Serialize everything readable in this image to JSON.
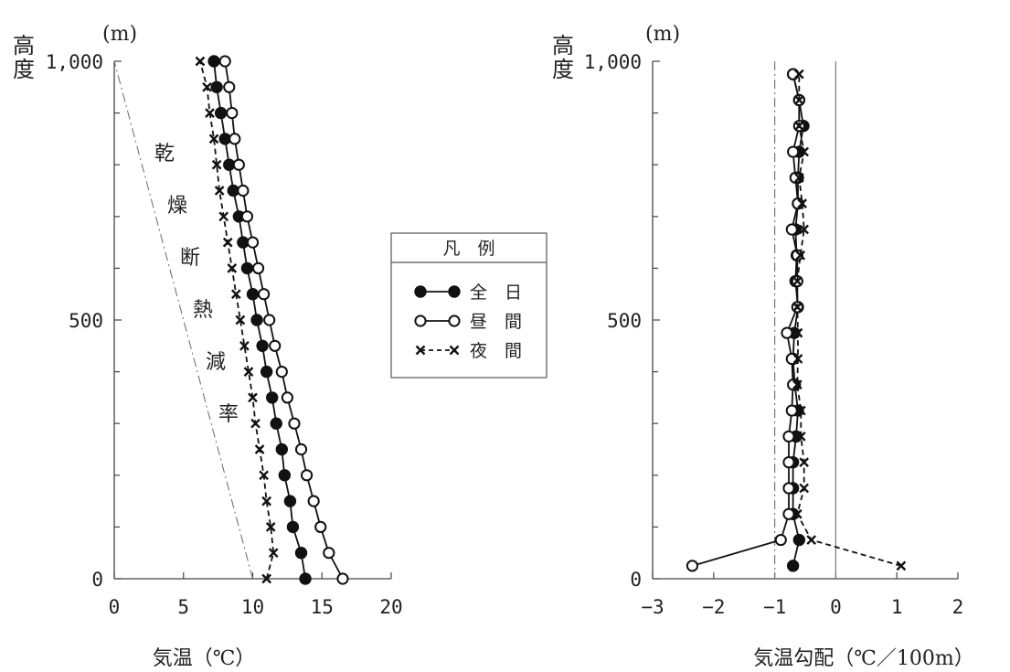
{
  "chart_data": [
    {
      "type": "line",
      "unit_label": "(m)",
      "ylabel": "高度",
      "xlabel": "気温（℃）",
      "xlim": [
        0,
        20
      ],
      "ylim": [
        0,
        1000
      ],
      "x_ticks": [
        "0",
        "5",
        "10",
        "15",
        "20"
      ],
      "y_ticks": [
        "0",
        "500",
        "1,000"
      ],
      "grid": false,
      "annotation": "乾燥断熱減率",
      "reference_line": {
        "x": [
          10,
          0
        ],
        "y": [
          0,
          1000
        ]
      },
      "series": [
        {
          "name": "全日",
          "marker": "filled-circle",
          "line": "solid",
          "points": [
            [
              13.8,
              0
            ],
            [
              13.5,
              50
            ],
            [
              12.9,
              100
            ],
            [
              12.7,
              150
            ],
            [
              12.3,
              200
            ],
            [
              12.1,
              250
            ],
            [
              11.7,
              300
            ],
            [
              11.4,
              350
            ],
            [
              11.0,
              400
            ],
            [
              10.7,
              450
            ],
            [
              10.3,
              500
            ],
            [
              10.0,
              550
            ],
            [
              9.6,
              600
            ],
            [
              9.3,
              650
            ],
            [
              9.0,
              700
            ],
            [
              8.6,
              750
            ],
            [
              8.3,
              800
            ],
            [
              8.0,
              850
            ],
            [
              7.7,
              900
            ],
            [
              7.4,
              950
            ],
            [
              7.2,
              1000
            ]
          ]
        },
        {
          "name": "昼間",
          "marker": "open-circle",
          "line": "solid",
          "points": [
            [
              16.5,
              0
            ],
            [
              15.5,
              50
            ],
            [
              14.9,
              100
            ],
            [
              14.4,
              150
            ],
            [
              13.9,
              200
            ],
            [
              13.5,
              250
            ],
            [
              13.0,
              300
            ],
            [
              12.5,
              350
            ],
            [
              12.1,
              400
            ],
            [
              11.6,
              450
            ],
            [
              11.2,
              500
            ],
            [
              10.8,
              550
            ],
            [
              10.4,
              600
            ],
            [
              10.0,
              650
            ],
            [
              9.6,
              700
            ],
            [
              9.3,
              750
            ],
            [
              9.0,
              800
            ],
            [
              8.7,
              850
            ],
            [
              8.5,
              900
            ],
            [
              8.3,
              950
            ],
            [
              8.0,
              1000
            ]
          ]
        },
        {
          "name": "夜間",
          "marker": "x",
          "line": "dashed",
          "points": [
            [
              11.0,
              0
            ],
            [
              11.5,
              50
            ],
            [
              11.3,
              100
            ],
            [
              11.0,
              150
            ],
            [
              10.8,
              200
            ],
            [
              10.5,
              250
            ],
            [
              10.2,
              300
            ],
            [
              10.0,
              350
            ],
            [
              9.7,
              400
            ],
            [
              9.4,
              450
            ],
            [
              9.1,
              500
            ],
            [
              8.8,
              550
            ],
            [
              8.5,
              600
            ],
            [
              8.2,
              650
            ],
            [
              7.9,
              700
            ],
            [
              7.6,
              750
            ],
            [
              7.4,
              800
            ],
            [
              7.2,
              850
            ],
            [
              6.9,
              900
            ],
            [
              6.7,
              950
            ],
            [
              6.2,
              1000
            ]
          ]
        }
      ]
    },
    {
      "type": "line",
      "unit_label": "(m)",
      "ylabel": "高度",
      "xlabel": "気温勾配（℃／100m）",
      "xlim": [
        -3,
        2
      ],
      "ylim": [
        0,
        1000
      ],
      "x_ticks": [
        "−3",
        "−2",
        "−1",
        "0",
        "1",
        "2"
      ],
      "y_ticks": [
        "0",
        "500",
        "1,000"
      ],
      "grid": false,
      "reference_lines": [
        {
          "x": -1,
          "style": "dash-dot"
        },
        {
          "x": 0,
          "style": "solid"
        }
      ],
      "series": [
        {
          "name": "全日",
          "marker": "filled-circle",
          "line": "solid",
          "points": [
            [
              -0.7,
              25
            ],
            [
              -0.6,
              75
            ],
            [
              -0.7,
              125
            ],
            [
              -0.7,
              175
            ],
            [
              -0.7,
              225
            ],
            [
              -0.65,
              275
            ],
            [
              -0.62,
              325
            ],
            [
              -0.67,
              375
            ],
            [
              -0.7,
              425
            ],
            [
              -0.68,
              475
            ],
            [
              -0.62,
              525
            ],
            [
              -0.66,
              575
            ],
            [
              -0.64,
              625
            ],
            [
              -0.66,
              675
            ],
            [
              -0.62,
              725
            ],
            [
              -0.62,
              775
            ],
            [
              -0.6,
              825
            ],
            [
              -0.53,
              875
            ],
            [
              -0.6,
              925
            ],
            [
              -0.7,
              975
            ]
          ]
        },
        {
          "name": "昼間",
          "marker": "open-circle",
          "line": "solid",
          "points": [
            [
              -2.35,
              25
            ],
            [
              -0.9,
              75
            ],
            [
              -0.77,
              125
            ],
            [
              -0.77,
              175
            ],
            [
              -0.77,
              225
            ],
            [
              -0.77,
              275
            ],
            [
              -0.72,
              325
            ],
            [
              -0.7,
              375
            ],
            [
              -0.72,
              425
            ],
            [
              -0.8,
              475
            ],
            [
              -0.63,
              525
            ],
            [
              -0.63,
              575
            ],
            [
              -0.63,
              625
            ],
            [
              -0.72,
              675
            ],
            [
              -0.62,
              725
            ],
            [
              -0.66,
              775
            ],
            [
              -0.7,
              825
            ],
            [
              -0.6,
              875
            ],
            [
              -0.6,
              925
            ],
            [
              -0.7,
              975
            ]
          ]
        },
        {
          "name": "夜間",
          "marker": "x",
          "line": "dashed",
          "points": [
            [
              1.07,
              25
            ],
            [
              -0.4,
              75
            ],
            [
              -0.63,
              125
            ],
            [
              -0.52,
              175
            ],
            [
              -0.52,
              225
            ],
            [
              -0.57,
              275
            ],
            [
              -0.57,
              325
            ],
            [
              -0.63,
              375
            ],
            [
              -0.62,
              425
            ],
            [
              -0.62,
              475
            ],
            [
              -0.63,
              525
            ],
            [
              -0.63,
              575
            ],
            [
              -0.58,
              625
            ],
            [
              -0.52,
              675
            ],
            [
              -0.55,
              725
            ],
            [
              -0.6,
              775
            ],
            [
              -0.52,
              825
            ],
            [
              -0.6,
              875
            ],
            [
              -0.6,
              925
            ],
            [
              -0.6,
              975
            ]
          ]
        }
      ]
    }
  ],
  "legend": {
    "title": "凡　例",
    "items": [
      {
        "label": "全日"
      },
      {
        "label": "昼間"
      },
      {
        "label": "夜間"
      }
    ]
  }
}
